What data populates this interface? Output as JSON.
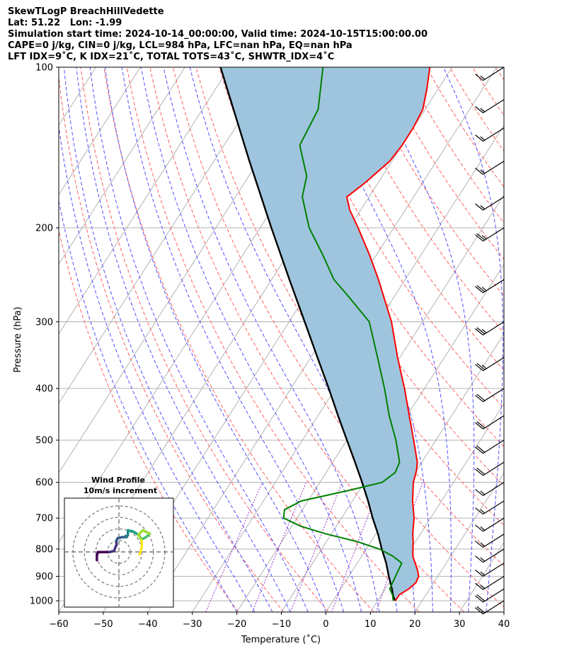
{
  "header": {
    "lines": [
      "SkewTLogP BreachHillVedette",
      "Lat: 51.22   Lon: -1.99",
      "Simulation start time: 2024-10-14_00:00:00, Valid time: 2024-10-15T15:00:00.00",
      "CAPE=0 j/kg, CIN=0 j/kg, LCL=984 hPa, LFC=nan hPa, EQ=nan hPa",
      "LFT IDX=9˚C, K IDX=21˚C, TOTAL TOTS=43˚C, SHWTR_IDX=4˚C"
    ]
  },
  "chart_data": {
    "type": "line",
    "subtype": "skew-T log-P",
    "xlabel": "Temperature (˚C)",
    "ylabel": "Pressure (hPa)",
    "xlim": [
      -60,
      40
    ],
    "ylim": [
      1050,
      100
    ],
    "y_scale": "log",
    "x_ticks": [
      "−60",
      "−50",
      "−40",
      "−30",
      "−20",
      "−10",
      "0",
      "10",
      "20",
      "30",
      "40"
    ],
    "x_tick_values": [
      -60,
      -50,
      -40,
      -30,
      -20,
      -10,
      0,
      10,
      20,
      30,
      40
    ],
    "y_ticks": [
      "100",
      "200",
      "300",
      "400",
      "500",
      "600",
      "700",
      "800",
      "900",
      "1000"
    ],
    "y_tick_values": [
      100,
      200,
      300,
      400,
      500,
      600,
      700,
      800,
      900,
      1000
    ],
    "grid": true,
    "colors": {
      "temperature": "#ff0000",
      "dewpoint": "#008000",
      "parcel": "#000000",
      "fill": "#9fc5de",
      "dry_adiabat": "#ff6060",
      "moist_adiabat": "#5050ff",
      "mixing_ratio": "#9933cc",
      "isotherm": "#aaaaaa"
    },
    "temperature": [
      {
        "p": 1000,
        "t": 14.0
      },
      {
        "p": 975,
        "t": 14.0
      },
      {
        "p": 950,
        "t": 15.3
      },
      {
        "p": 925,
        "t": 16.0
      },
      {
        "p": 900,
        "t": 15.7
      },
      {
        "p": 875,
        "t": 14.5
      },
      {
        "p": 850,
        "t": 13.0
      },
      {
        "p": 825,
        "t": 11.5
      },
      {
        "p": 800,
        "t": 10.5
      },
      {
        "p": 775,
        "t": 9.5
      },
      {
        "p": 750,
        "t": 8.3
      },
      {
        "p": 700,
        "t": 6.3
      },
      {
        "p": 650,
        "t": 3.5
      },
      {
        "p": 600,
        "t": 1.0
      },
      {
        "p": 570,
        "t": 0.0
      },
      {
        "p": 550,
        "t": -1.0
      },
      {
        "p": 500,
        "t": -5.0
      },
      {
        "p": 450,
        "t": -9.5
      },
      {
        "p": 400,
        "t": -14.5
      },
      {
        "p": 350,
        "t": -20.5
      },
      {
        "p": 300,
        "t": -27.0
      },
      {
        "p": 250,
        "t": -36.0
      },
      {
        "p": 225,
        "t": -41.5
      },
      {
        "p": 200,
        "t": -48.0
      },
      {
        "p": 185,
        "t": -52.5
      },
      {
        "p": 175,
        "t": -55.0
      },
      {
        "p": 165,
        "t": -53.0
      },
      {
        "p": 150,
        "t": -50.5
      },
      {
        "p": 140,
        "t": -50.0
      },
      {
        "p": 130,
        "t": -50.0
      },
      {
        "p": 120,
        "t": -50.5
      },
      {
        "p": 110,
        "t": -52.5
      },
      {
        "p": 100,
        "t": -55.0
      }
    ],
    "dewpoint": [
      {
        "p": 1000,
        "t": 13.5
      },
      {
        "p": 975,
        "t": 12.5
      },
      {
        "p": 950,
        "t": 11.0
      },
      {
        "p": 900,
        "t": 10.5
      },
      {
        "p": 850,
        "t": 10.0
      },
      {
        "p": 825,
        "t": 7.0
      },
      {
        "p": 800,
        "t": 3.0
      },
      {
        "p": 775,
        "t": -3.0
      },
      {
        "p": 750,
        "t": -11.0
      },
      {
        "p": 725,
        "t": -18.0
      },
      {
        "p": 700,
        "t": -23.0
      },
      {
        "p": 675,
        "t": -24.0
      },
      {
        "p": 650,
        "t": -21.5
      },
      {
        "p": 620,
        "t": -12.0
      },
      {
        "p": 600,
        "t": -6.0
      },
      {
        "p": 575,
        "t": -4.5
      },
      {
        "p": 550,
        "t": -5.0
      },
      {
        "p": 500,
        "t": -9.0
      },
      {
        "p": 450,
        "t": -14.0
      },
      {
        "p": 400,
        "t": -19.0
      },
      {
        "p": 350,
        "t": -25.0
      },
      {
        "p": 300,
        "t": -32.0
      },
      {
        "p": 270,
        "t": -40.0
      },
      {
        "p": 250,
        "t": -46.0
      },
      {
        "p": 225,
        "t": -52.0
      },
      {
        "p": 200,
        "t": -59.0
      },
      {
        "p": 175,
        "t": -65.0
      },
      {
        "p": 160,
        "t": -67.0
      },
      {
        "p": 140,
        "t": -73.0
      },
      {
        "p": 120,
        "t": -74.0
      },
      {
        "p": 100,
        "t": -79.0
      }
    ],
    "parcel": [
      {
        "p": 1000,
        "t": 14.0
      },
      {
        "p": 984,
        "t": 13.0
      },
      {
        "p": 950,
        "t": 11.5
      },
      {
        "p": 900,
        "t": 9.0
      },
      {
        "p": 850,
        "t": 6.5
      },
      {
        "p": 800,
        "t": 3.5
      },
      {
        "p": 750,
        "t": 0.5
      },
      {
        "p": 700,
        "t": -3.0
      },
      {
        "p": 650,
        "t": -6.5
      },
      {
        "p": 600,
        "t": -10.5
      },
      {
        "p": 550,
        "t": -15.0
      },
      {
        "p": 500,
        "t": -20.0
      },
      {
        "p": 450,
        "t": -25.5
      },
      {
        "p": 400,
        "t": -31.5
      },
      {
        "p": 350,
        "t": -38.5
      },
      {
        "p": 300,
        "t": -46.5
      },
      {
        "p": 250,
        "t": -56.0
      },
      {
        "p": 200,
        "t": -67.5
      },
      {
        "p": 150,
        "t": -82.0
      },
      {
        "p": 100,
        "t": -102.0
      }
    ],
    "wind_barbs": [
      {
        "p": 1000,
        "speed_kt": 20
      },
      {
        "p": 950,
        "speed_kt": 20
      },
      {
        "p": 900,
        "speed_kt": 15
      },
      {
        "p": 850,
        "speed_kt": 15
      },
      {
        "p": 800,
        "speed_kt": 15
      },
      {
        "p": 750,
        "speed_kt": 15
      },
      {
        "p": 700,
        "speed_kt": 15
      },
      {
        "p": 650,
        "speed_kt": 15
      },
      {
        "p": 600,
        "speed_kt": 15
      },
      {
        "p": 550,
        "speed_kt": 20
      },
      {
        "p": 500,
        "speed_kt": 20
      },
      {
        "p": 450,
        "speed_kt": 20
      },
      {
        "p": 400,
        "speed_kt": 20
      },
      {
        "p": 350,
        "speed_kt": 25
      },
      {
        "p": 300,
        "speed_kt": 25
      },
      {
        "p": 250,
        "speed_kt": 25
      },
      {
        "p": 200,
        "speed_kt": 25
      },
      {
        "p": 175,
        "speed_kt": 15
      },
      {
        "p": 150,
        "speed_kt": 15
      },
      {
        "p": 130,
        "speed_kt": 15
      },
      {
        "p": 115,
        "speed_kt": 15
      },
      {
        "p": 100,
        "speed_kt": 15
      }
    ],
    "hodograph": {
      "title": "Wind Profile",
      "subtitle": "10m/s increment",
      "ring_spacing_ms": 10,
      "points": [
        {
          "u": -6.5,
          "v": -0.5
        },
        {
          "u": -6.5,
          "v": 1.5
        },
        {
          "u": -6.0,
          "v": 3.0
        },
        {
          "u": -4.0,
          "v": 3.0
        },
        {
          "u": -1.0,
          "v": 3.0
        },
        {
          "u": 1.0,
          "v": 3.5
        },
        {
          "u": 1.5,
          "v": 5.0
        },
        {
          "u": 2.0,
          "v": 6.0
        },
        {
          "u": 2.0,
          "v": 8.0
        },
        {
          "u": 2.5,
          "v": 9.0
        },
        {
          "u": 4.5,
          "v": 9.5
        },
        {
          "u": 6.0,
          "v": 9.5
        },
        {
          "u": 6.0,
          "v": 10.0
        },
        {
          "u": 6.5,
          "v": 9.5
        },
        {
          "u": 7.0,
          "v": 10.5
        },
        {
          "u": 7.0,
          "v": 12.5
        },
        {
          "u": 9.0,
          "v": 12.0
        },
        {
          "u": 10.0,
          "v": 11.5
        },
        {
          "u": 11.5,
          "v": 10.5
        },
        {
          "u": 12.0,
          "v": 10.0
        },
        {
          "u": 13.0,
          "v": 8.5
        },
        {
          "u": 14.0,
          "v": 9.0
        },
        {
          "u": 15.5,
          "v": 10.0
        },
        {
          "u": 16.5,
          "v": 11.0
        }
      ],
      "late_points": [
        {
          "u": 13.5,
          "v": 12.5
        },
        {
          "u": 12.5,
          "v": 11.5
        },
        {
          "u": 11.5,
          "v": 10.5
        },
        {
          "u": 13.0,
          "v": 8.0
        },
        {
          "u": 13.0,
          "v": 5.0
        },
        {
          "u": 12.5,
          "v": 3.0
        },
        {
          "u": 12.0,
          "v": 2.0
        }
      ]
    }
  }
}
